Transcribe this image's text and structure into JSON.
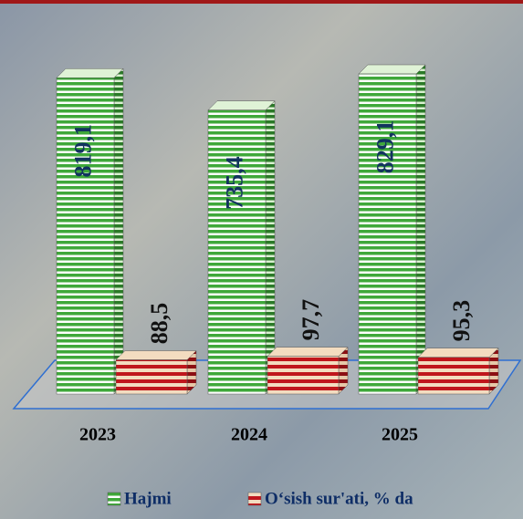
{
  "chart_data": {
    "type": "bar",
    "categories": [
      "2023",
      "2024",
      "2025"
    ],
    "series": [
      {
        "name": "Hajmi",
        "color": "#3fa83a",
        "values": [
          819.1,
          735.4,
          829.1
        ],
        "value_labels": [
          "819,1",
          "735,4",
          "829,1"
        ]
      },
      {
        "name": "O‘sish sur'ati, % da",
        "color": "#c0161c",
        "values": [
          88.5,
          97.7,
          95.3
        ],
        "value_labels": [
          "88,5",
          "97,7",
          "95,3"
        ]
      }
    ],
    "ylim": [
      0,
      900
    ]
  }
}
